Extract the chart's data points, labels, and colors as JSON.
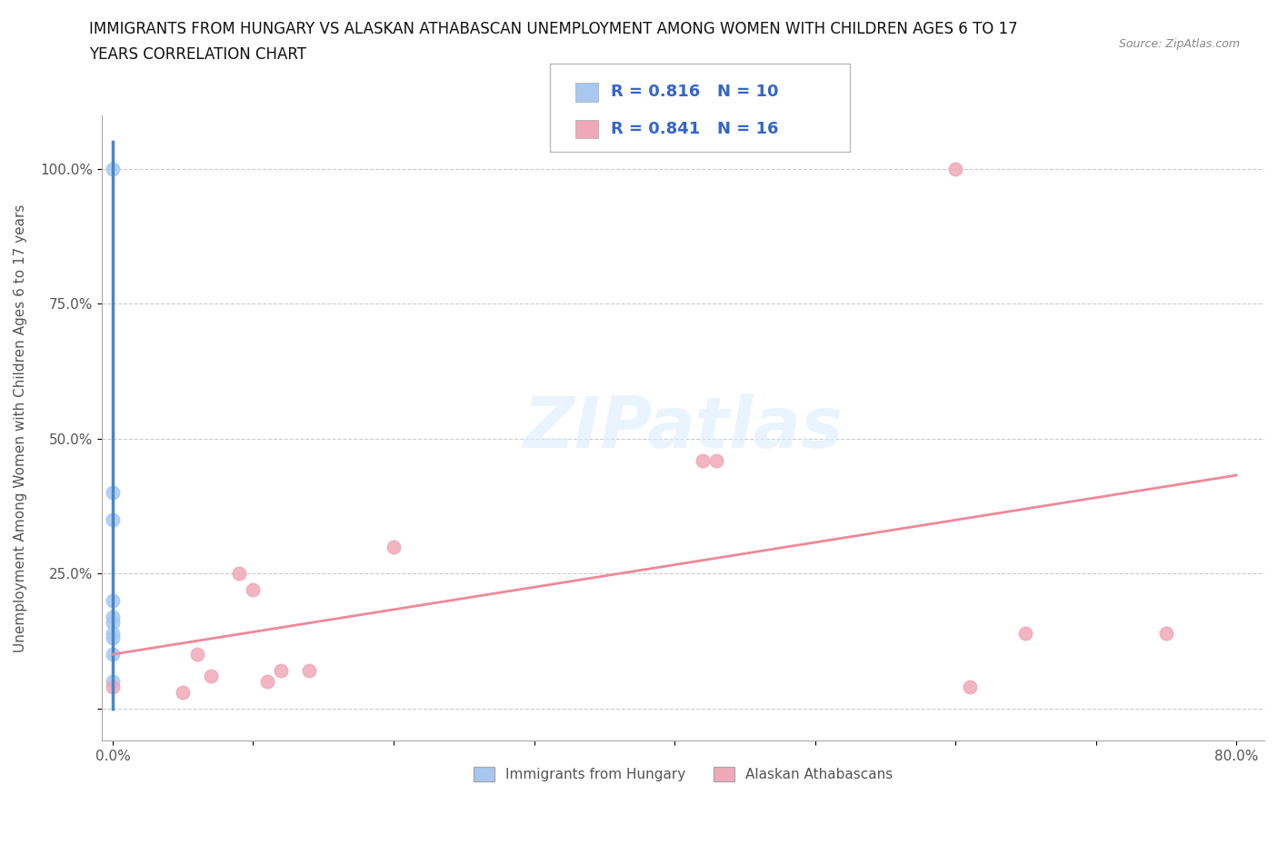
{
  "title_line1": "IMMIGRANTS FROM HUNGARY VS ALASKAN ATHABASCAN UNEMPLOYMENT AMONG WOMEN WITH CHILDREN AGES 6 TO 17",
  "title_line2": "YEARS CORRELATION CHART",
  "source_text": "Source: ZipAtlas.com",
  "ylabel": "Unemployment Among Women with Children Ages 6 to 17 years",
  "xlim": [
    -0.008,
    0.82
  ],
  "ylim": [
    -0.06,
    1.1
  ],
  "xtick_positions": [
    0.0,
    0.1,
    0.2,
    0.3,
    0.4,
    0.5,
    0.6,
    0.7,
    0.8
  ],
  "xticklabels": [
    "0.0%",
    "",
    "",
    "",
    "",
    "",
    "",
    "",
    "80.0%"
  ],
  "ytick_positions": [
    0.0,
    0.25,
    0.5,
    0.75,
    1.0
  ],
  "yticklabels": [
    "",
    "25.0%",
    "50.0%",
    "75.0%",
    "100.0%"
  ],
  "hungary_x": [
    0.0,
    0.0,
    0.0,
    0.0,
    0.0,
    0.0,
    0.0,
    0.0,
    0.0,
    0.0
  ],
  "hungary_y": [
    1.0,
    0.4,
    0.35,
    0.2,
    0.17,
    0.16,
    0.14,
    0.13,
    0.1,
    0.05
  ],
  "athabascan_x": [
    0.0,
    0.05,
    0.06,
    0.07,
    0.09,
    0.1,
    0.11,
    0.12,
    0.14,
    0.2,
    0.42,
    0.43,
    0.6,
    0.61,
    0.65,
    0.75
  ],
  "athabascan_y": [
    0.04,
    0.03,
    0.1,
    0.06,
    0.25,
    0.22,
    0.05,
    0.07,
    0.07,
    0.3,
    0.46,
    0.46,
    1.0,
    0.04,
    0.14,
    0.14
  ],
  "hungary_color": "#a8c8f0",
  "athabascan_color": "#f0a8b8",
  "hungary_line_color": "#4488cc",
  "athabascan_line_color": "#ee8899",
  "hungary_R": 0.816,
  "hungary_N": 10,
  "athabascan_R": 0.841,
  "athabascan_N": 16,
  "marker_size": 110,
  "background_color": "#ffffff",
  "grid_color": "#cccccc",
  "watermark": "ZIPatlas",
  "legend_hungary_label": "Immigrants from Hungary",
  "legend_athabascan_label": "Alaskan Athabascans"
}
